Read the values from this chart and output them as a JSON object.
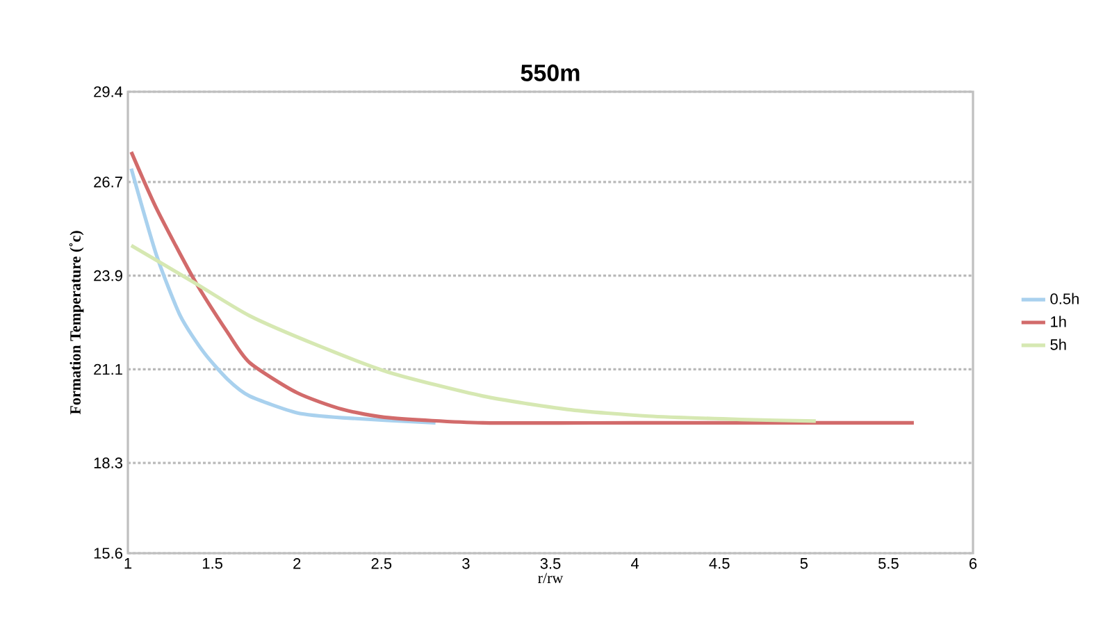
{
  "chart_data": {
    "type": "line",
    "title": "550m",
    "xlabel": "r/rw",
    "ylabel": "Formation Temperature (˚c)",
    "xlim": [
      1,
      6
    ],
    "xticks": [
      1,
      1.5,
      2,
      2.5,
      3,
      3.5,
      4,
      4.5,
      5,
      5.5,
      6
    ],
    "ylim": [
      15.6,
      29.4
    ],
    "yticks": [
      15.6,
      18.3,
      21.1,
      23.9,
      26.7,
      29.4
    ],
    "grid": "y",
    "legend": "right",
    "marker": "none",
    "line_style": "solid",
    "series": [
      {
        "name": "0.5h",
        "color": "#a9d1ee",
        "x": [
          1.02,
          1.17,
          1.31,
          1.45,
          1.59,
          1.72,
          2.0,
          2.27,
          2.82
        ],
        "values": [
          27.1,
          24.5,
          22.7,
          21.6,
          20.8,
          20.3,
          19.8,
          19.65,
          19.5
        ]
      },
      {
        "name": "1h",
        "color": "#d26b6b",
        "x": [
          1.02,
          1.17,
          1.39,
          1.59,
          1.72,
          2.0,
          2.27,
          2.55,
          3.1,
          4.0,
          5.0,
          5.65
        ],
        "values": [
          27.6,
          25.9,
          23.8,
          22.2,
          21.3,
          20.4,
          19.9,
          19.65,
          19.5,
          19.5,
          19.5,
          19.5
        ]
      },
      {
        "name": "5h",
        "color": "#d6e8b2",
        "x": [
          1.02,
          1.39,
          1.72,
          2.13,
          2.55,
          3.1,
          3.6,
          4.08,
          4.63,
          5.07
        ],
        "values": [
          24.8,
          23.7,
          22.7,
          21.8,
          21.0,
          20.3,
          19.9,
          19.7,
          19.6,
          19.55
        ]
      }
    ]
  }
}
